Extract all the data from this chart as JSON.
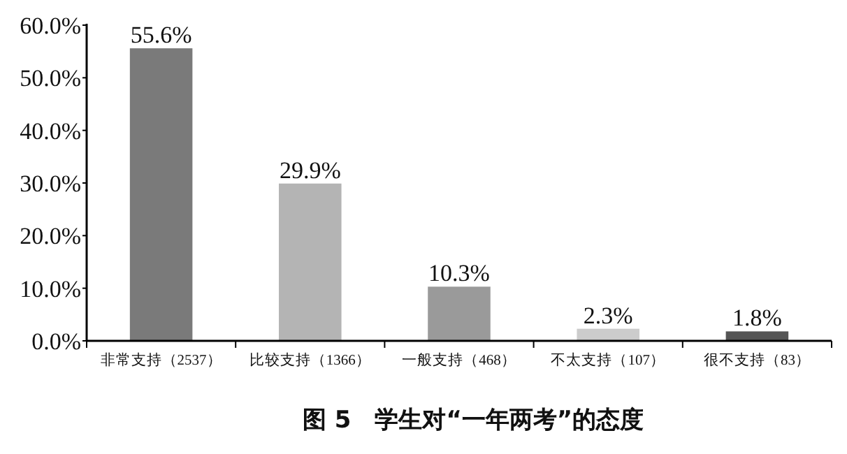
{
  "chart_data": {
    "type": "bar",
    "title": "图 5　学生对“一年两考”的态度",
    "categories": [
      "非常支持（2537）",
      "比较支持（1366）",
      "一般支持（468）",
      "不太支持（107）",
      "很不支持（83）"
    ],
    "values": [
      55.6,
      29.9,
      10.3,
      2.3,
      1.8
    ],
    "colors": [
      "#7a7a7a",
      "#b4b4b4",
      "#9a9a9a",
      "#cccccc",
      "#555555"
    ],
    "value_labels": [
      "55.6%",
      "29.9%",
      "10.3%",
      "2.3%",
      "1.8%"
    ],
    "ylim": [
      0,
      60
    ],
    "yticks": [
      {
        "value": 0,
        "label": "0.0%"
      },
      {
        "value": 10,
        "label": "10.0%"
      },
      {
        "value": 20,
        "label": "20.0%"
      },
      {
        "value": 30,
        "label": "30.0%"
      },
      {
        "value": 40,
        "label": "40.0%"
      },
      {
        "value": 50,
        "label": "50.0%"
      },
      {
        "value": 60,
        "label": "60.0%"
      }
    ],
    "grid": false
  }
}
